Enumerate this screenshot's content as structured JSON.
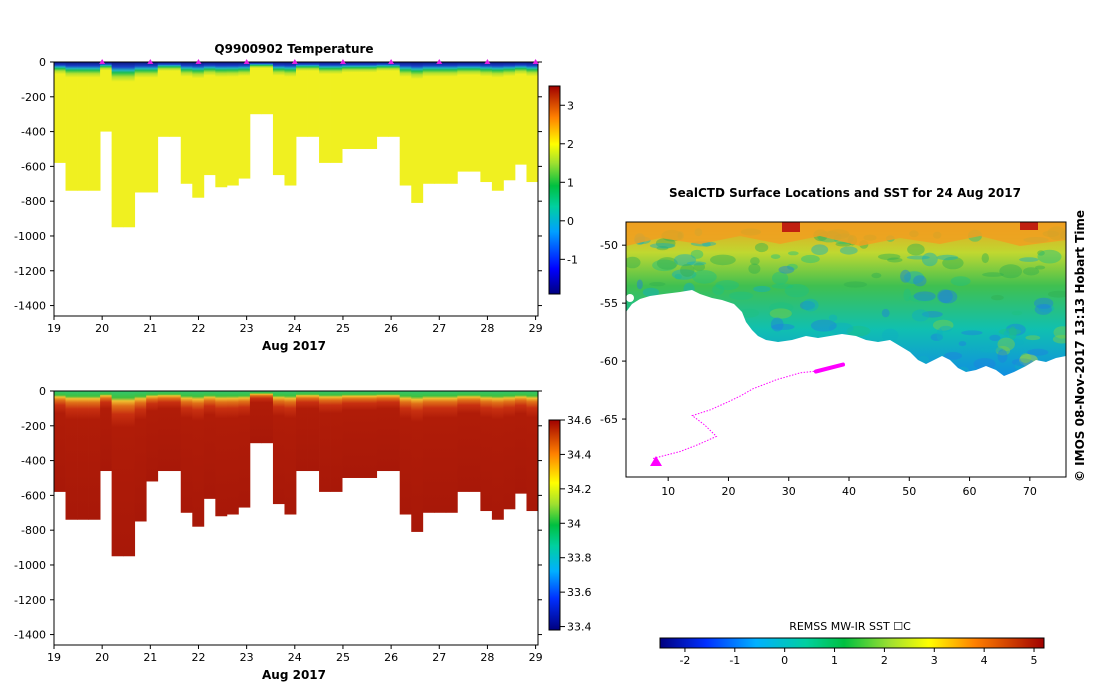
{
  "chart_data": [
    {
      "id": "temperature",
      "type": "heatmap",
      "title": "Q9900902  Temperature",
      "xlabel": "Aug 2017",
      "ylabel": "",
      "x_ticks": [
        "19",
        "20",
        "21",
        "22",
        "23",
        "24",
        "25",
        "26",
        "27",
        "28",
        "29"
      ],
      "y_ticks": [
        "0",
        "-200",
        "-400",
        "-600",
        "-800",
        "-1000",
        "-1200",
        "-1400"
      ],
      "xlim": [
        19,
        29.05
      ],
      "ylim": [
        -1460,
        0
      ],
      "colorbar": {
        "ticks": [
          "3",
          "2",
          "1",
          "0",
          "-1"
        ],
        "range": [
          -1.9,
          3.5
        ]
      },
      "profile_markers_days": [
        20,
        21,
        22,
        23,
        24,
        25,
        26,
        27,
        28,
        29
      ],
      "profile_max_depth": [
        -580,
        -740,
        -740,
        -740,
        -400,
        -950,
        -950,
        -750,
        -750,
        -430,
        -430,
        -700,
        -780,
        -650,
        -720,
        -710,
        -670,
        -300,
        -300,
        -650,
        -710,
        -430,
        -430,
        -580,
        -580,
        -500,
        -500,
        -500,
        -430,
        -430,
        -710,
        -810,
        -700,
        -700,
        -700,
        -630,
        -630,
        -690,
        -740,
        -680,
        -590,
        -690
      ]
    },
    {
      "id": "salinity",
      "type": "heatmap",
      "title": "",
      "xlabel": "Aug 2017",
      "ylabel": "",
      "x_ticks": [
        "19",
        "20",
        "21",
        "22",
        "23",
        "24",
        "25",
        "26",
        "27",
        "28",
        "29"
      ],
      "y_ticks": [
        "0",
        "-200",
        "-400",
        "-600",
        "-800",
        "-1000",
        "-1200",
        "-1400"
      ],
      "xlim": [
        19,
        29.05
      ],
      "ylim": [
        -1460,
        0
      ],
      "colorbar": {
        "ticks": [
          "34.6",
          "34.4",
          "34.2",
          "34",
          "33.8",
          "33.6",
          "33.4"
        ],
        "range": [
          33.38,
          34.6
        ]
      },
      "profile_max_depth": [
        -580,
        -740,
        -740,
        -740,
        -460,
        -950,
        -950,
        -750,
        -520,
        -460,
        -460,
        -700,
        -780,
        -620,
        -720,
        -710,
        -670,
        -300,
        -300,
        -650,
        -710,
        -460,
        -460,
        -580,
        -580,
        -500,
        -500,
        -500,
        -460,
        -460,
        -710,
        -810,
        -700,
        -700,
        -700,
        -580,
        -580,
        -690,
        -740,
        -680,
        -590,
        -690
      ]
    },
    {
      "id": "sst-map",
      "type": "heatmap",
      "title": "SealCTD Surface Locations and SST for 24 Aug 2017",
      "xlabel": "",
      "ylabel": "",
      "x_ticks": [
        "10",
        "20",
        "30",
        "40",
        "50",
        "60",
        "70"
      ],
      "y_ticks": [
        "-50",
        "-55",
        "-60",
        "-65"
      ],
      "xlim": [
        3,
        76
      ],
      "ylim": [
        -70,
        -48
      ],
      "colorbar": {
        "label": "REMSS MW-IR SST ☐C",
        "ticks": [
          "-2",
          "-1",
          "0",
          "1",
          "2",
          "3",
          "4",
          "5"
        ],
        "range": [
          -2.5,
          5.2
        ]
      },
      "track": [
        [
          7.5,
          -68.4
        ],
        [
          9,
          -68.2
        ],
        [
          12,
          -67.8
        ],
        [
          15,
          -67.2
        ],
        [
          18,
          -66.5
        ],
        [
          16,
          -65.5
        ],
        [
          14,
          -64.7
        ],
        [
          17,
          -64.2
        ],
        [
          20,
          -63.5
        ],
        [
          22,
          -63
        ],
        [
          24,
          -62.4
        ],
        [
          26,
          -62
        ],
        [
          28,
          -61.6
        ],
        [
          30,
          -61.3
        ],
        [
          32,
          -61
        ],
        [
          34,
          -60.9
        ],
        [
          36,
          -60.7
        ],
        [
          38,
          -60.5
        ],
        [
          39,
          -60.3
        ]
      ],
      "track_current_end": [
        [
          34.5,
          -60.9
        ],
        [
          39,
          -60.3
        ]
      ]
    }
  ],
  "side_label": "©  IMOS 08-Nov-2017 13:13 Hobart Time"
}
